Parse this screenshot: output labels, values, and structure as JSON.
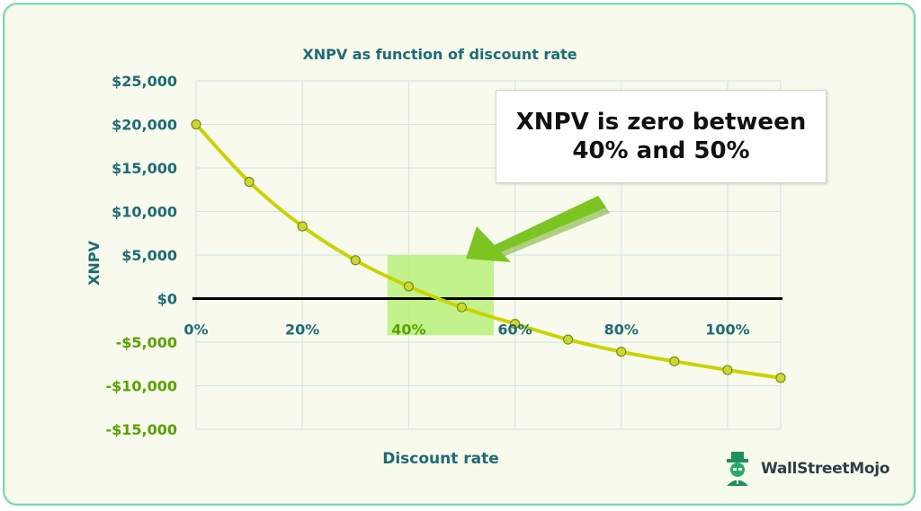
{
  "chart_data": {
    "type": "line",
    "title": "XNPV as function of discount rate",
    "xlabel": "Discount rate",
    "ylabel": "XNPV",
    "x": [
      0,
      10,
      20,
      30,
      40,
      50,
      60,
      70,
      80,
      90,
      100,
      110
    ],
    "series": [
      {
        "values": [
          20000,
          13400,
          8300,
          4400,
          1400,
          -1000,
          -2900,
          -4700,
          -6100,
          -7200,
          -8200,
          -9100
        ],
        "color": "#c8d400"
      }
    ],
    "x_tick_values": [
      0,
      20,
      40,
      60,
      80,
      100
    ],
    "x_tick_labels": [
      "0%",
      "20%",
      "40%",
      "60%",
      "80%",
      "100%"
    ],
    "y_tick_values": [
      25000,
      20000,
      15000,
      10000,
      5000,
      0,
      -5000,
      -10000,
      -15000
    ],
    "y_tick_labels": [
      "$25,000",
      "$20,000",
      "$15,000",
      "$10,000",
      "$5,000",
      "$0",
      "-$5,000",
      "-$10,000",
      "-$15,000"
    ],
    "xlim": [
      0,
      110
    ],
    "ylim": [
      -15000,
      25000
    ],
    "grid": true,
    "highlight_region": {
      "x": [
        36,
        56
      ],
      "y": [
        -4200,
        5000
      ],
      "color": "#b8f07a"
    },
    "annotation": {
      "text": "XNPV is zero between 40% and 50%",
      "line1": "XNPV is zero between",
      "line2": "40% and 50%"
    }
  },
  "colors": {
    "axis_text": "#1f6b75",
    "negative_text": "#5aa000",
    "line": "#c8d400",
    "marker_fill": "#cbd832",
    "arrow": "#7cc421",
    "zero_axis": "#000000",
    "grid": "#cfe3e8"
  },
  "logo": {
    "text": "WallStreetMojo",
    "icon": "mojo-mascot-icon"
  }
}
